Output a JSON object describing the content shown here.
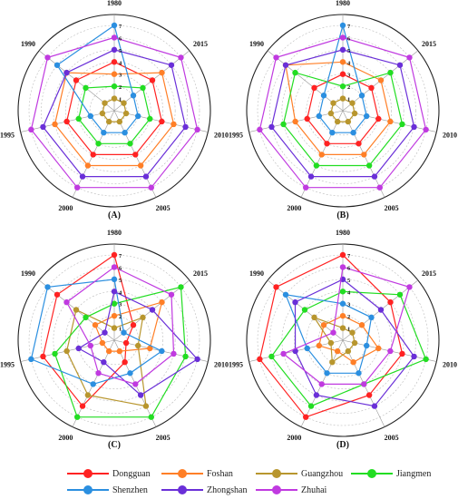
{
  "chart_data": [
    {
      "type": "radar",
      "panel_label": "(A)",
      "axes": [
        "1980",
        "2015",
        "2010",
        "2005",
        "2000",
        "1995",
        "1990"
      ],
      "rlim": [
        0,
        7
      ],
      "r_ticks": [
        "1",
        "2",
        "3",
        "4",
        "5",
        "6",
        "7"
      ],
      "series": [
        {
          "name": "Dongguan",
          "values": [
            4,
            4,
            4,
            4,
            4,
            4,
            4
          ]
        },
        {
          "name": "Foshan",
          "values": [
            3,
            5,
            5,
            5,
            5,
            5,
            5
          ]
        },
        {
          "name": "Guangzhou",
          "values": [
            1,
            1,
            1,
            1,
            1,
            1,
            1
          ]
        },
        {
          "name": "Jiangmen",
          "values": [
            2,
            3,
            3,
            3,
            3,
            3,
            3
          ]
        },
        {
          "name": "Shenzhen",
          "values": [
            7,
            2,
            2,
            2,
            2,
            2,
            6
          ]
        },
        {
          "name": "Zhongshan",
          "values": [
            5,
            6,
            6,
            6,
            6,
            6,
            5
          ]
        },
        {
          "name": "Zhuhai",
          "values": [
            6,
            7,
            7,
            7,
            7,
            7,
            7
          ]
        }
      ]
    },
    {
      "type": "radar",
      "panel_label": "(B)",
      "axes": [
        "1980",
        "2015",
        "2010",
        "2005",
        "2000",
        "1995",
        "1990"
      ],
      "rlim": [
        0,
        7
      ],
      "r_ticks": [
        "1",
        "2",
        "3",
        "4",
        "5",
        "6",
        "7"
      ],
      "series": [
        {
          "name": "Dongguan",
          "values": [
            3,
            3,
            3,
            3,
            3,
            3,
            3
          ]
        },
        {
          "name": "Foshan",
          "values": [
            4,
            4,
            4,
            4,
            4,
            4,
            6
          ]
        },
        {
          "name": "Guangzhou",
          "values": [
            1,
            1,
            1,
            1,
            1,
            1,
            1
          ]
        },
        {
          "name": "Jiangmen",
          "values": [
            2,
            5,
            5,
            5,
            5,
            5,
            5
          ]
        },
        {
          "name": "Shenzhen",
          "values": [
            7,
            2,
            2,
            2,
            2,
            2,
            2
          ]
        },
        {
          "name": "Zhongshan",
          "values": [
            5,
            6,
            6,
            6,
            6,
            6,
            6
          ]
        },
        {
          "name": "Zhuhai",
          "values": [
            6,
            7,
            7,
            7,
            7,
            7,
            7
          ]
        }
      ]
    },
    {
      "type": "radar",
      "panel_label": "(C)",
      "axes": [
        "1980",
        "2015",
        "2010",
        "2005",
        "2000",
        "1995",
        "1990"
      ],
      "rlim": [
        0,
        7
      ],
      "r_ticks": [
        "1",
        "2",
        "3",
        "4",
        "5",
        "6",
        "7"
      ],
      "series": [
        {
          "name": "Dongguan",
          "values": [
            7,
            2,
            1,
            2,
            6,
            6,
            6
          ]
        },
        {
          "name": "Foshan",
          "values": [
            2,
            5,
            3,
            1,
            1,
            1,
            2
          ]
        },
        {
          "name": "Guangzhou",
          "values": [
            1,
            3,
            2,
            6,
            5,
            4,
            4
          ]
        },
        {
          "name": "Jiangmen",
          "values": [
            3,
            7,
            6,
            7,
            7,
            5,
            3
          ]
        },
        {
          "name": "Shenzhen",
          "values": [
            5,
            1,
            4,
            3,
            4,
            7,
            7
          ]
        },
        {
          "name": "Zhongshan",
          "values": [
            4,
            4,
            7,
            5,
            2,
            3,
            1
          ]
        },
        {
          "name": "Zhuhai",
          "values": [
            6,
            6,
            5,
            4,
            3,
            2,
            5
          ]
        }
      ]
    },
    {
      "type": "radar",
      "panel_label": "(D)",
      "axes": [
        "1980",
        "2015",
        "2010",
        "2005",
        "2000",
        "1995",
        "1990"
      ],
      "rlim": [
        0,
        7
      ],
      "r_ticks": [
        "1",
        "2",
        "3",
        "4",
        "5",
        "6",
        "7"
      ],
      "series": [
        {
          "name": "Dongguan",
          "values": [
            7,
            5,
            5,
            5,
            7,
            7,
            7
          ]
        },
        {
          "name": "Foshan",
          "values": [
            2,
            2,
            3,
            2,
            1,
            2,
            2
          ]
        },
        {
          "name": "Guangzhou",
          "values": [
            1,
            1,
            1,
            1,
            2,
            1,
            3
          ]
        },
        {
          "name": "Jiangmen",
          "values": [
            4,
            6,
            7,
            4,
            6,
            6,
            4
          ]
        },
        {
          "name": "Shenzhen",
          "values": [
            3,
            3,
            2,
            3,
            3,
            3,
            6
          ]
        },
        {
          "name": "Zhongshan",
          "values": [
            5,
            4,
            6,
            6,
            5,
            4,
            5
          ]
        },
        {
          "name": "Zhuhai",
          "values": [
            6,
            7,
            4,
            4,
            4,
            5,
            1
          ]
        }
      ]
    }
  ],
  "legend": [
    {
      "name": "Dongguan",
      "color": "#ff2222"
    },
    {
      "name": "Foshan",
      "color": "#ff7f27"
    },
    {
      "name": "Guangzhou",
      "color": "#b8962e"
    },
    {
      "name": "Jiangmen",
      "color": "#22dd22"
    },
    {
      "name": "Shenzhen",
      "color": "#2b8fe0"
    },
    {
      "name": "Zhongshan",
      "color": "#6a2fd8"
    },
    {
      "name": "Zhuhai",
      "color": "#c03ae0"
    }
  ]
}
